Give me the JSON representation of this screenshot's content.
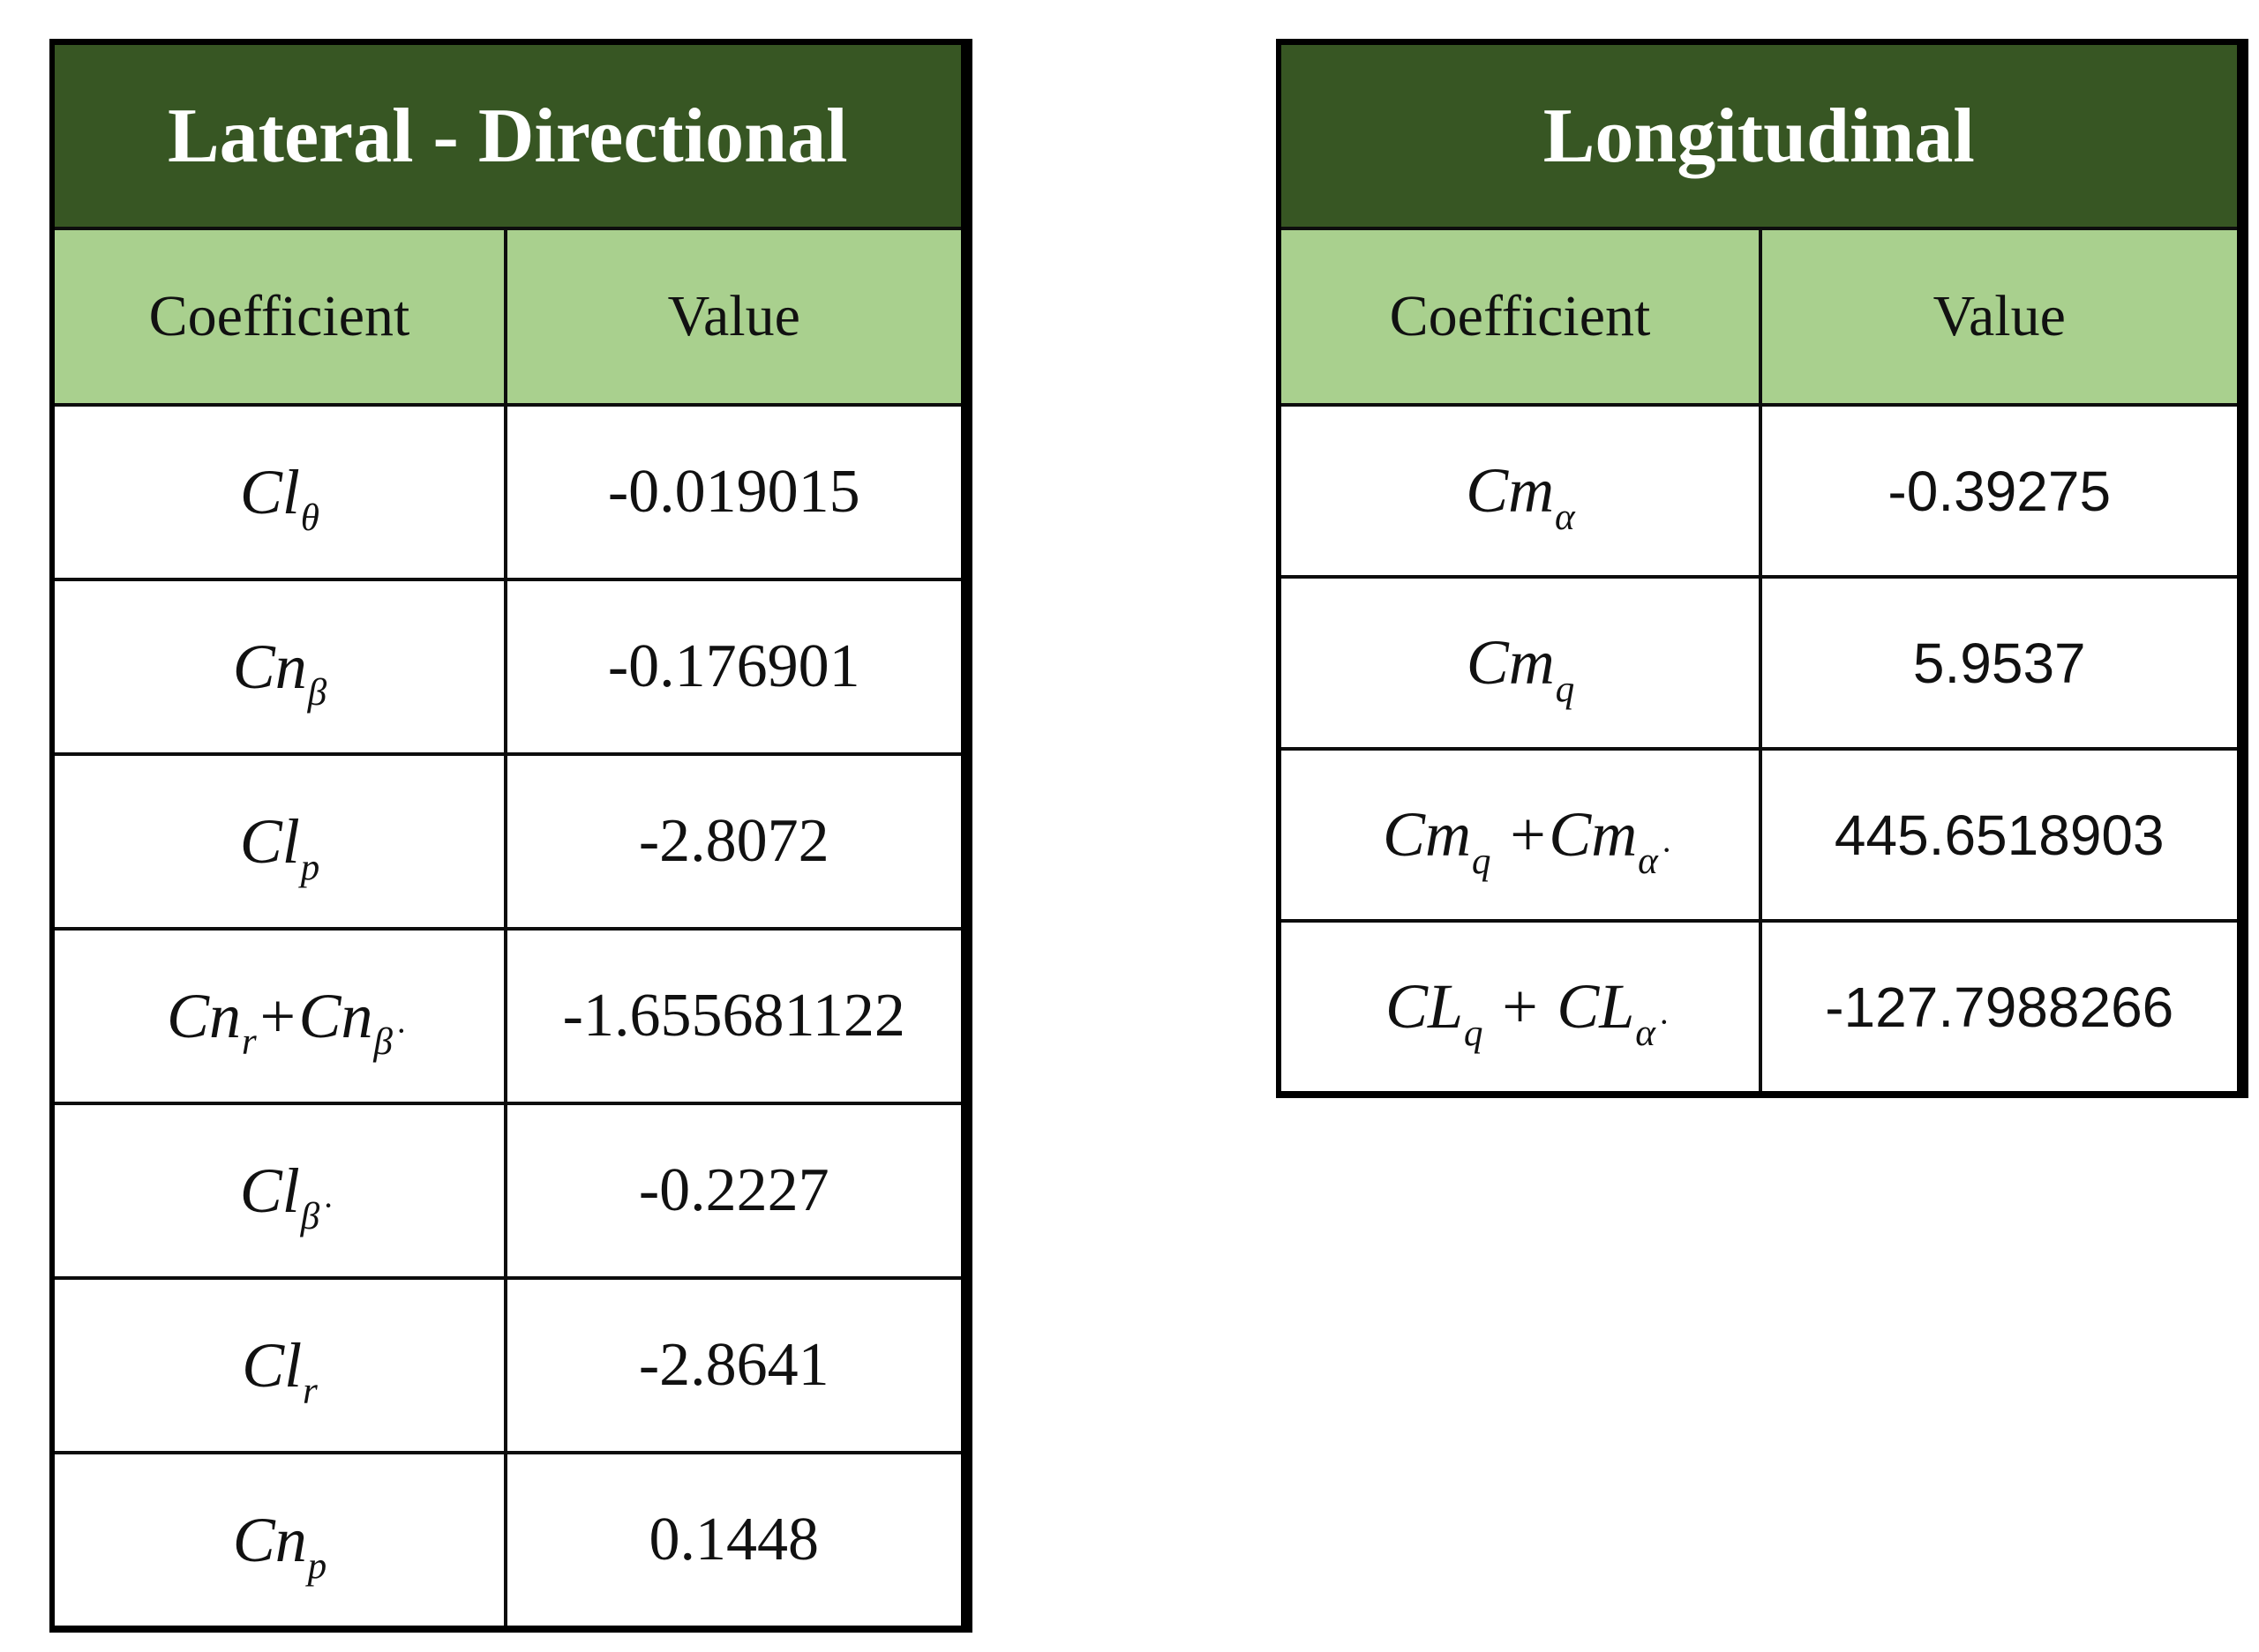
{
  "page": {
    "background": "#ffffff"
  },
  "colors": {
    "title_band_green_dark": "#375623",
    "header_band_green_light": "#a9d08e",
    "title_text": "#ffffff",
    "body_text": "#111111",
    "border": "#000000"
  },
  "chart_data": [
    {
      "type": "table",
      "title": "Lateral - Directional",
      "columns": [
        "Coefficient",
        "Value"
      ],
      "rows": [
        {
          "coefficient": "Clθ",
          "coefficient_parts": [
            {
              "t": "Cl"
            },
            {
              "t": "θ",
              "sub": true
            }
          ],
          "value": "-0.019015"
        },
        {
          "coefficient": "Cnβ",
          "coefficient_parts": [
            {
              "t": "Cn"
            },
            {
              "t": "β",
              "sub": true
            }
          ],
          "value": "-0.176901"
        },
        {
          "coefficient": "Clp",
          "coefficient_parts": [
            {
              "t": "Cl"
            },
            {
              "t": "p",
              "sub": true
            }
          ],
          "value": "-2.8072"
        },
        {
          "coefficient": "Cnr+Cnβ̇",
          "coefficient_parts": [
            {
              "t": "Cn"
            },
            {
              "t": "r",
              "sub": true
            },
            {
              "t": "+"
            },
            {
              "t": "Cn"
            },
            {
              "t": "β̇",
              "sub": true
            }
          ],
          "value": "-1.655681122"
        },
        {
          "coefficient": "Clβ̇",
          "coefficient_parts": [
            {
              "t": "Cl"
            },
            {
              "t": "β̇",
              "sub": true
            }
          ],
          "value": "-0.2227"
        },
        {
          "coefficient": "Clr",
          "coefficient_parts": [
            {
              "t": "Cl"
            },
            {
              "t": "r",
              "sub": true
            }
          ],
          "value": "-2.8641"
        },
        {
          "coefficient": "Cnp",
          "coefficient_parts": [
            {
              "t": "Cn"
            },
            {
              "t": "p",
              "sub": true
            }
          ],
          "value": "0.1448"
        }
      ]
    },
    {
      "type": "table",
      "title": "Longitudinal",
      "columns": [
        "Coefficient",
        "Value"
      ],
      "rows": [
        {
          "coefficient": "Cmα",
          "coefficient_parts": [
            {
              "t": "Cm"
            },
            {
              "t": "α",
              "sub": true
            }
          ],
          "value": "-0.39275"
        },
        {
          "coefficient": "Cmq",
          "coefficient_parts": [
            {
              "t": "Cm"
            },
            {
              "t": "q",
              "sub": true
            }
          ],
          "value": "5.9537"
        },
        {
          "coefficient": "Cmq +Cmα̇",
          "coefficient_parts": [
            {
              "t": "Cm"
            },
            {
              "t": "q",
              "sub": true
            },
            {
              "t": " +"
            },
            {
              "t": "Cm"
            },
            {
              "t": "α̇",
              "sub": true
            }
          ],
          "value": "445.6518903"
        },
        {
          "coefficient": "CLq + CLα̇",
          "coefficient_parts": [
            {
              "t": "CL"
            },
            {
              "t": "q",
              "sub": true
            },
            {
              "t": " + "
            },
            {
              "t": "CL"
            },
            {
              "t": "α̇",
              "sub": true
            }
          ],
          "value": "-127.7988266"
        }
      ]
    }
  ]
}
